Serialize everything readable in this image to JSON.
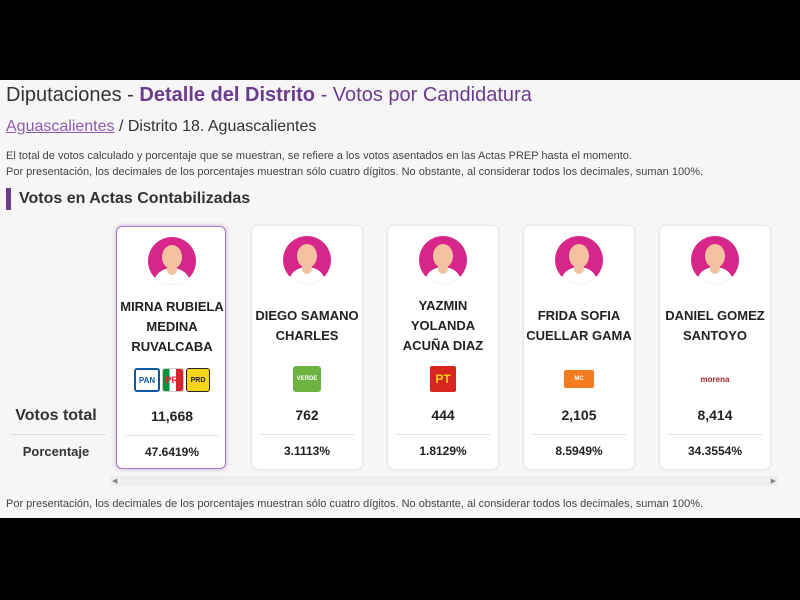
{
  "header": {
    "title_prefix": "Diputaciones - ",
    "title_bold": "Detalle del Distrito",
    "title_suffix": " - Votos por Candidatura"
  },
  "breadcrumb": {
    "link": "Aguascalientes",
    "rest": " / Distrito 18.  Aguascalientes"
  },
  "notes": {
    "line1": "El total de votos calculado y porcentaje que se muestran, se refiere a los votos asentados en las Actas PREP hasta el momento.",
    "line2": "Por presentación, los decimales de los porcentajes muestran sólo cuatro dígitos. No obstante, al considerar todos los decimales, suman 100%.",
    "footer": "Por presentación, los decimales de los porcentajes muestran sólo cuatro dígitos. No obstante, al considerar todos los decimales, suman 100%."
  },
  "section_title": "Votos en Actas Contabilizadas",
  "row_labels": {
    "votes": "Votos total",
    "percent": "Porcentaje"
  },
  "candidates": [
    {
      "name_lines": [
        "MIRNA RUBIELA",
        "MEDINA",
        "RUVALCABA"
      ],
      "parties": [
        "PAN",
        "PRI",
        "PRD"
      ],
      "votes": "11,668",
      "percent": "47.6419%",
      "selected": true
    },
    {
      "name_lines": [
        "DIEGO SAMANO",
        "CHARLES"
      ],
      "parties": [
        "VERDE"
      ],
      "votes": "762",
      "percent": "3.1113%"
    },
    {
      "name_lines": [
        "YAZMIN",
        "YOLANDA",
        "ACUÑA DIAZ"
      ],
      "parties": [
        "PT"
      ],
      "votes": "444",
      "percent": "1.8129%"
    },
    {
      "name_lines": [
        "FRIDA SOFIA",
        "CUELLAR GAMA"
      ],
      "parties": [
        "MC"
      ],
      "votes": "2,105",
      "percent": "8.5949%"
    },
    {
      "name_lines": [
        "DANIEL GOMEZ",
        "SANTOYO"
      ],
      "parties": [
        "morena"
      ],
      "votes": "8,414",
      "percent": "34.3554%"
    }
  ],
  "colors": {
    "accent": "#6b3b8e",
    "avatar_bg": "#d6268a",
    "link": "#8a5cb0"
  }
}
